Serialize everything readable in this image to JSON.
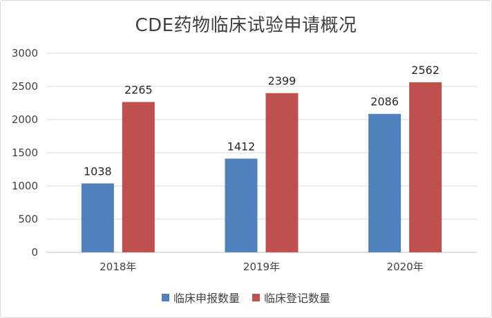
{
  "chart_data": {
    "type": "bar",
    "title": "CDE药物临床试验申请概况",
    "categories": [
      "2018年",
      "2019年",
      "2020年"
    ],
    "series": [
      {
        "name": "临床申报数量",
        "values": [
          1038,
          1412,
          2086
        ],
        "color": "#4f81bd"
      },
      {
        "name": "临床登记数量",
        "values": [
          2265,
          2399,
          2562
        ],
        "color": "#c0504d"
      }
    ],
    "ylim": [
      0,
      3000
    ],
    "yticks": [
      0,
      500,
      1000,
      1500,
      2000,
      2500,
      3000
    ],
    "grid": true,
    "legend_position": "bottom",
    "xlabel": "",
    "ylabel": ""
  }
}
